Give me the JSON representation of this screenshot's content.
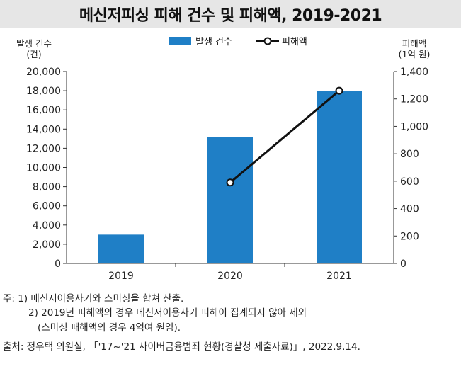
{
  "title": "메신저피싱 피해 건수 및 피해액, 2019-2021",
  "chart_data": {
    "type": "bar+line",
    "title": "메신저피싱 피해 건수 및 피해액, 2019-2021",
    "categories": [
      "2019",
      "2020",
      "2021"
    ],
    "series": [
      {
        "name": "발생 건수",
        "kind": "bar",
        "axis": "left",
        "values": [
          3000,
          13200,
          18000
        ],
        "color": "#1f7fc6"
      },
      {
        "name": "피해액",
        "kind": "line",
        "axis": "right",
        "values": [
          null,
          590,
          1260
        ],
        "color": "#111111"
      }
    ],
    "left_axis": {
      "label_line1": "발생 건수",
      "label_line2": "(건)",
      "ylim": [
        0,
        20000
      ],
      "ticks": [
        0,
        2000,
        4000,
        6000,
        8000,
        10000,
        12000,
        14000,
        16000,
        18000,
        20000
      ],
      "tick_labels": [
        "0",
        "2,000",
        "4,000",
        "6,000",
        "8,000",
        "10,000",
        "12,000",
        "14,000",
        "16,000",
        "18,000",
        "20,000"
      ]
    },
    "right_axis": {
      "label_line1": "피해액",
      "label_line2": "(1억 원)",
      "ylim": [
        0,
        1400
      ],
      "ticks": [
        0,
        200,
        400,
        600,
        800,
        1000,
        1200,
        1400
      ],
      "tick_labels": [
        "0",
        "200",
        "400",
        "600",
        "800",
        "1,000",
        "1,200",
        "1,400"
      ]
    },
    "legend": {
      "placement": "top-center",
      "bar_label": "발생 건수",
      "line_label": "피해액"
    },
    "grid": false
  },
  "notes": {
    "note1": "주: 1) 메신저이용사기와 스미싱을 합쳐 산출.",
    "note2": "2) 2019년 피해액의 경우 메신저이용사기 피해이 집계되지 않아 제외",
    "note3": "(스미싱 패해액의 경우 4억여 원임).",
    "source": "출처: 정우택 의원실, 「'17~'21 사이버금융범죄 현황(경찰청 제출자료)」, 2022.9.14."
  }
}
